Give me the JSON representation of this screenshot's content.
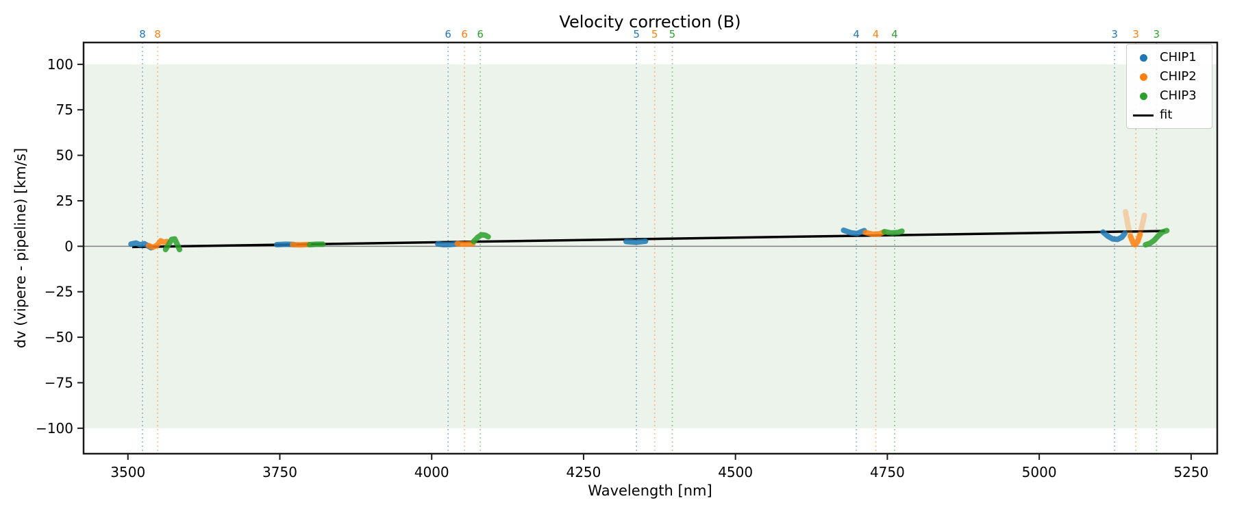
{
  "chart_data": {
    "type": "scatter",
    "title": "Velocity correction (B)",
    "xlabel": "Wavelength [nm]",
    "ylabel": "dv (vipere - pipeline) [km/s]",
    "xlim": [
      3427,
      5293
    ],
    "ylim": [
      -114,
      112
    ],
    "x_ticks": [
      3500,
      3750,
      4000,
      4250,
      4500,
      4750,
      5000,
      5250
    ],
    "y_ticks": [
      100,
      75,
      50,
      25,
      0,
      -25,
      -50,
      -75,
      -100
    ],
    "grid": false,
    "shaded_band": {
      "y_min": -100,
      "y_max": 100,
      "color": "#ebf3eb"
    },
    "zero_line": {
      "y": 0,
      "color": "#7f7f7f"
    },
    "legend_position": "upper right",
    "legend": [
      {
        "label": "CHIP1",
        "color": "#1f77b4",
        "marker": "dot"
      },
      {
        "label": "CHIP2",
        "color": "#ff7f0e",
        "marker": "dot"
      },
      {
        "label": "CHIP3",
        "color": "#2ca02c",
        "marker": "dot"
      },
      {
        "label": "fit",
        "color": "#000000",
        "marker": "line"
      }
    ],
    "order_markers": [
      {
        "label": "8",
        "chip": "CHIP1",
        "wavelength": 3524,
        "color": "#1f77b4"
      },
      {
        "label": "8",
        "chip": "CHIP2",
        "wavelength": 3549,
        "color": "#ff7f0e"
      },
      {
        "label": "6",
        "chip": "CHIP1",
        "wavelength": 4027,
        "color": "#1f77b4"
      },
      {
        "label": "6",
        "chip": "CHIP2",
        "wavelength": 4054,
        "color": "#ff7f0e"
      },
      {
        "label": "6",
        "chip": "CHIP3",
        "wavelength": 4080,
        "color": "#2ca02c"
      },
      {
        "label": "5",
        "chip": "CHIP1",
        "wavelength": 4337,
        "color": "#1f77b4"
      },
      {
        "label": "5",
        "chip": "CHIP2",
        "wavelength": 4367,
        "color": "#ff7f0e"
      },
      {
        "label": "5",
        "chip": "CHIP3",
        "wavelength": 4396,
        "color": "#2ca02c"
      },
      {
        "label": "4",
        "chip": "CHIP1",
        "wavelength": 4699,
        "color": "#1f77b4"
      },
      {
        "label": "4",
        "chip": "CHIP2",
        "wavelength": 4731,
        "color": "#ff7f0e"
      },
      {
        "label": "4",
        "chip": "CHIP3",
        "wavelength": 4762,
        "color": "#2ca02c"
      },
      {
        "label": "3",
        "chip": "CHIP1",
        "wavelength": 5124,
        "color": "#1f77b4"
      },
      {
        "label": "3",
        "chip": "CHIP2",
        "wavelength": 5159,
        "color": "#ff7f0e"
      },
      {
        "label": "3",
        "chip": "CHIP3",
        "wavelength": 5193,
        "color": "#2ca02c"
      }
    ],
    "series": [
      {
        "name": "CHIP1",
        "color": "#1f77b4",
        "segments": [
          {
            "order": 8,
            "opacity": 0.85,
            "points": [
              [
                3505,
                1.2
              ],
              [
                3513,
                1.8
              ],
              [
                3520,
                0.8
              ],
              [
                3527,
                1.4
              ],
              [
                3533,
                0.2
              ],
              [
                3538,
                -0.8
              ]
            ]
          },
          {
            "order": 7,
            "opacity": 0.85,
            "points": [
              [
                3745,
                0.9
              ],
              [
                3760,
                1.1
              ],
              [
                3773,
                1.0
              ]
            ]
          },
          {
            "order": 6,
            "opacity": 0.85,
            "points": [
              [
                4010,
                1.3
              ],
              [
                4020,
                0.9
              ],
              [
                4032,
                1.0
              ],
              [
                4043,
                1.4
              ]
            ]
          },
          {
            "order": 5,
            "opacity": 0.85,
            "points": [
              [
                4320,
                2.6
              ],
              [
                4336,
                2.2
              ],
              [
                4352,
                2.8
              ]
            ]
          },
          {
            "order": 4,
            "opacity": 0.85,
            "points": [
              [
                4678,
                8.8
              ],
              [
                4690,
                7.4
              ],
              [
                4700,
                7.0
              ],
              [
                4712,
                8.6
              ]
            ]
          },
          {
            "order": 3,
            "opacity": 0.85,
            "points": [
              [
                5105,
                7.8
              ],
              [
                5113,
                5.5
              ],
              [
                5121,
                4.0
              ],
              [
                5129,
                3.8
              ],
              [
                5136,
                5.0
              ],
              [
                5141,
                7.2
              ]
            ]
          }
        ]
      },
      {
        "name": "CHIP2",
        "color": "#ff7f0e",
        "segments": [
          {
            "order": 8,
            "opacity": 0.85,
            "points": [
              [
                3534,
                0.4
              ],
              [
                3541,
                -0.6
              ],
              [
                3548,
                0.6
              ],
              [
                3554,
                3.0
              ],
              [
                3559,
                2.2
              ],
              [
                3564,
                2.6
              ]
            ]
          },
          {
            "order": 7,
            "opacity": 0.85,
            "points": [
              [
                3771,
                0.9
              ],
              [
                3785,
                0.8
              ],
              [
                3797,
                1.0
              ]
            ]
          },
          {
            "order": 6,
            "opacity": 0.85,
            "points": [
              [
                4042,
                1.4
              ],
              [
                4055,
                1.2
              ],
              [
                4068,
                1.5
              ]
            ]
          },
          {
            "order": 4,
            "opacity": 0.85,
            "points": [
              [
                4714,
                7.6
              ],
              [
                4726,
                6.6
              ],
              [
                4737,
                6.8
              ],
              [
                4744,
                7.8
              ]
            ]
          },
          {
            "order": 3,
            "opacity": 0.3,
            "points": [
              [
                5142,
                19.0
              ],
              [
                5147,
                10.0
              ],
              [
                5152,
                4.0
              ],
              [
                5157,
                0.9
              ],
              [
                5163,
                3.5
              ],
              [
                5169,
                11.0
              ],
              [
                5173,
                17.0
              ]
            ]
          },
          {
            "order": 3,
            "opacity": 0.8,
            "points": [
              [
                5150,
                5.5
              ],
              [
                5155,
                1.5
              ],
              [
                5158,
                0.9
              ],
              [
                5162,
                2.5
              ],
              [
                5166,
                6.5
              ]
            ]
          }
        ]
      },
      {
        "name": "CHIP3",
        "color": "#2ca02c",
        "segments": [
          {
            "order": 8,
            "opacity": 0.85,
            "points": [
              [
                3562,
                -1.8
              ],
              [
                3567,
                1.0
              ],
              [
                3572,
                3.8
              ],
              [
                3577,
                4.0
              ],
              [
                3581,
                1.2
              ],
              [
                3585,
                -1.8
              ]
            ]
          },
          {
            "order": 7,
            "opacity": 0.85,
            "points": [
              [
                3799,
                0.9
              ],
              [
                3810,
                1.1
              ],
              [
                3821,
                1.1
              ]
            ]
          },
          {
            "order": 6,
            "opacity": 0.85,
            "points": [
              [
                4069,
                2.6
              ],
              [
                4076,
                5.0
              ],
              [
                4082,
                6.3
              ],
              [
                4088,
                6.1
              ],
              [
                4093,
                5.2
              ]
            ]
          },
          {
            "order": 4,
            "opacity": 0.85,
            "points": [
              [
                4745,
                8.0
              ],
              [
                4757,
                7.3
              ],
              [
                4768,
                7.6
              ],
              [
                4774,
                8.3
              ]
            ]
          },
          {
            "order": 3,
            "opacity": 0.85,
            "points": [
              [
                5175,
                0.8
              ],
              [
                5182,
                1.6
              ],
              [
                5189,
                3.2
              ],
              [
                5196,
                5.8
              ],
              [
                5203,
                7.9
              ],
              [
                5210,
                8.6
              ]
            ]
          }
        ]
      }
    ],
    "fit": {
      "label": "fit",
      "color": "#000000",
      "x": [
        3507,
        5207
      ],
      "y": [
        -0.4,
        8.4
      ]
    }
  }
}
